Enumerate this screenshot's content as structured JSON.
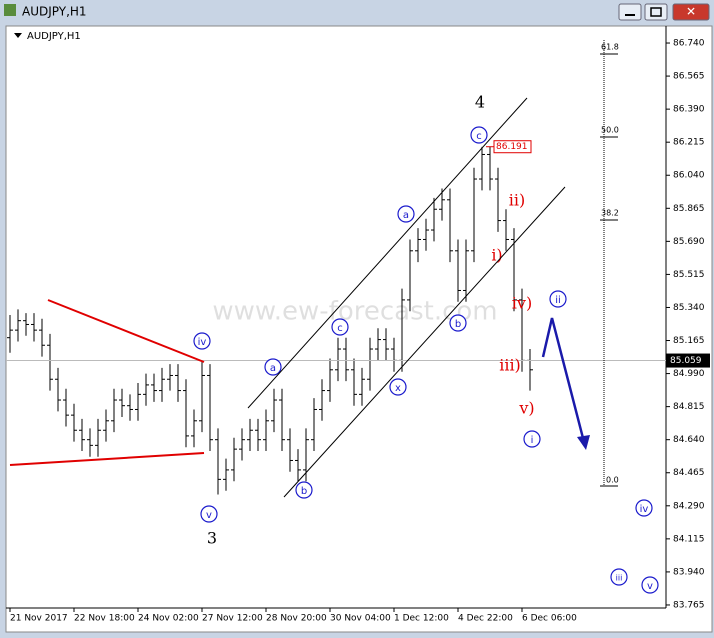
{
  "window_title": "AUDJPY,H1",
  "chart_data": {
    "type": "ohlc",
    "title": "AUDJPY,H1",
    "x": [
      "21 Nov 2017",
      null,
      null,
      null,
      null,
      null,
      null,
      null,
      "22 Nov 18:00",
      null,
      null,
      null,
      null,
      null,
      null,
      null,
      "24 Nov 02:00",
      null,
      null,
      null,
      null,
      null,
      null,
      null,
      "27 Nov 12:00",
      null,
      null,
      null,
      null,
      null,
      null,
      null,
      "28 Nov 20:00",
      null,
      null,
      null,
      null,
      null,
      null,
      null,
      "30 Nov 04:00",
      null,
      null,
      null,
      null,
      null,
      null,
      null,
      "1 Dec 12:00",
      null,
      null,
      null,
      null,
      null,
      null,
      null,
      "4 Dec 22:00",
      null,
      null,
      null,
      null,
      null,
      null,
      null,
      "6 Dec 06:00",
      null
    ],
    "open": [
      85.18,
      85.22,
      85.27,
      85.25,
      85.22,
      85.14,
      84.96,
      84.85,
      84.77,
      84.69,
      84.64,
      84.61,
      84.69,
      84.74,
      84.85,
      84.82,
      84.8,
      84.88,
      84.93,
      84.9,
      84.96,
      84.98,
      84.9,
      84.66,
      84.74,
      84.98,
      84.64,
      84.43,
      84.48,
      84.59,
      84.64,
      84.69,
      84.64,
      84.74,
      84.85,
      84.64,
      84.53,
      84.48,
      84.64,
      84.8,
      84.9,
      85.01,
      85.12,
      85.01,
      84.88,
      84.96,
      85.12,
      85.17,
      85.12,
      85.06,
      85.38,
      85.64,
      85.7,
      85.75,
      85.86,
      85.91,
      85.64,
      85.43,
      85.64,
      86.02,
      86.15,
      86.02,
      85.8,
      85.7,
      85.38,
      85.06
    ],
    "high": [
      85.3,
      85.33,
      85.31,
      85.31,
      85.28,
      85.2,
      85.02,
      84.91,
      84.83,
      84.75,
      84.7,
      84.75,
      84.8,
      84.91,
      84.91,
      84.88,
      84.94,
      84.99,
      84.99,
      85.02,
      85.04,
      85.04,
      84.96,
      84.8,
      85.06,
      85.04,
      84.7,
      84.54,
      84.65,
      84.7,
      84.75,
      84.75,
      84.8,
      84.91,
      84.91,
      84.7,
      84.59,
      84.7,
      84.86,
      84.96,
      85.07,
      85.18,
      85.18,
      85.07,
      85.02,
      85.18,
      85.23,
      85.23,
      85.18,
      85.44,
      85.7,
      85.76,
      85.81,
      85.92,
      85.97,
      85.97,
      85.7,
      85.7,
      86.08,
      86.19,
      86.19,
      86.08,
      85.86,
      85.76,
      85.44,
      85.12
    ],
    "low": [
      85.1,
      85.16,
      85.19,
      85.16,
      85.08,
      84.9,
      84.79,
      84.71,
      84.63,
      84.58,
      84.55,
      84.55,
      84.63,
      84.68,
      84.76,
      84.74,
      84.74,
      84.82,
      84.84,
      84.84,
      84.9,
      84.84,
      84.6,
      84.6,
      84.68,
      84.58,
      84.35,
      84.37,
      84.42,
      84.53,
      84.58,
      84.58,
      84.58,
      84.68,
      84.58,
      84.47,
      84.42,
      84.42,
      84.58,
      84.74,
      84.84,
      84.95,
      84.95,
      84.82,
      84.82,
      84.9,
      85.06,
      85.06,
      85.0,
      85.0,
      85.32,
      85.58,
      85.64,
      85.69,
      85.8,
      85.58,
      85.37,
      85.37,
      85.58,
      85.96,
      85.96,
      85.74,
      85.64,
      85.32,
      85.0,
      84.9
    ],
    "close": [
      85.22,
      85.27,
      85.25,
      85.22,
      85.14,
      84.96,
      84.85,
      84.77,
      84.69,
      84.64,
      84.61,
      84.69,
      84.74,
      84.85,
      84.82,
      84.8,
      84.88,
      84.93,
      84.9,
      84.96,
      84.98,
      84.9,
      84.66,
      84.74,
      84.98,
      84.64,
      84.43,
      84.48,
      84.59,
      84.64,
      84.69,
      84.64,
      84.74,
      84.85,
      84.64,
      84.53,
      84.48,
      84.64,
      84.8,
      84.9,
      85.01,
      85.12,
      85.01,
      84.88,
      84.96,
      85.12,
      85.17,
      85.12,
      85.06,
      85.38,
      85.64,
      85.7,
      85.75,
      85.86,
      85.91,
      85.64,
      85.43,
      85.64,
      86.02,
      86.15,
      86.02,
      85.8,
      85.7,
      85.38,
      85.06,
      85.01
    ],
    "color": "#000000",
    "ylim": [
      83.75,
      86.81
    ],
    "yticks": [
      {
        "value": 86.74,
        "label": "86.740"
      },
      {
        "value": 86.565,
        "label": "86.565"
      },
      {
        "value": 86.39,
        "label": "86.390"
      },
      {
        "value": 86.215,
        "label": "86.215"
      },
      {
        "value": 86.04,
        "label": "86.040"
      },
      {
        "value": 85.865,
        "label": "85.865"
      },
      {
        "value": 85.69,
        "label": "85.690"
      },
      {
        "value": 85.515,
        "label": "85.515"
      },
      {
        "value": 85.34,
        "label": "85.340"
      },
      {
        "value": 85.165,
        "label": "85.165"
      },
      {
        "value": 84.99,
        "label": "84.990"
      },
      {
        "value": 84.815,
        "label": "84.815"
      },
      {
        "value": 84.64,
        "label": "84.640"
      },
      {
        "value": 84.465,
        "label": "84.465"
      },
      {
        "value": 84.29,
        "label": "84.290"
      },
      {
        "value": 84.115,
        "label": "84.115"
      },
      {
        "value": 83.94,
        "label": "83.940"
      },
      {
        "value": 83.765,
        "label": "83.765"
      }
    ],
    "current_price": {
      "value": 85.059,
      "label": "85.059"
    },
    "level_label": {
      "value": 86.191,
      "label": "86.191"
    },
    "watermark": "www.ew-forecast.com",
    "annotations": [
      {
        "text": "4",
        "color": "#000000",
        "circled": false
      },
      {
        "text": "3",
        "color": "#000000",
        "circled": false
      },
      {
        "text": "c",
        "color": "#1a1acc",
        "circled": true
      },
      {
        "text": "a",
        "color": "#1a1acc",
        "circled": true
      },
      {
        "text": "c",
        "color": "#1a1acc",
        "circled": true
      },
      {
        "text": "a",
        "color": "#1a1acc",
        "circled": true
      },
      {
        "text": "b",
        "color": "#1a1acc",
        "circled": true
      },
      {
        "text": "x",
        "color": "#1a1acc",
        "circled": true
      },
      {
        "text": "b",
        "color": "#1a1acc",
        "circled": true
      },
      {
        "text": "iv",
        "color": "#1a1acc",
        "circled": true
      },
      {
        "text": "v",
        "color": "#1a1acc",
        "circled": true
      },
      {
        "text": "ii",
        "color": "#1a1acc",
        "circled": true
      },
      {
        "text": "i",
        "color": "#1a1acc",
        "circled": true
      },
      {
        "text": "iv",
        "color": "#1a1acc",
        "circled": true
      },
      {
        "text": "iii",
        "color": "#1a1acc",
        "circled": true
      },
      {
        "text": "v",
        "color": "#1a1acc",
        "circled": true
      },
      {
        "text": "ii)",
        "color": "#e00000",
        "circled": false
      },
      {
        "text": "i)",
        "color": "#e00000",
        "circled": false
      },
      {
        "text": "iv)",
        "color": "#e00000",
        "circled": false
      },
      {
        "text": "iii)",
        "color": "#e00000",
        "circled": false
      },
      {
        "text": "v)",
        "color": "#e00000",
        "circled": false
      },
      {
        "text": "61.8",
        "color": "#000000",
        "circled": false
      },
      {
        "text": "50.0",
        "color": "#000000",
        "circled": false
      },
      {
        "text": "38.2",
        "color": "#000000",
        "circled": false
      },
      {
        "text": "0.0",
        "color": "#000000",
        "circled": false
      }
    ]
  }
}
